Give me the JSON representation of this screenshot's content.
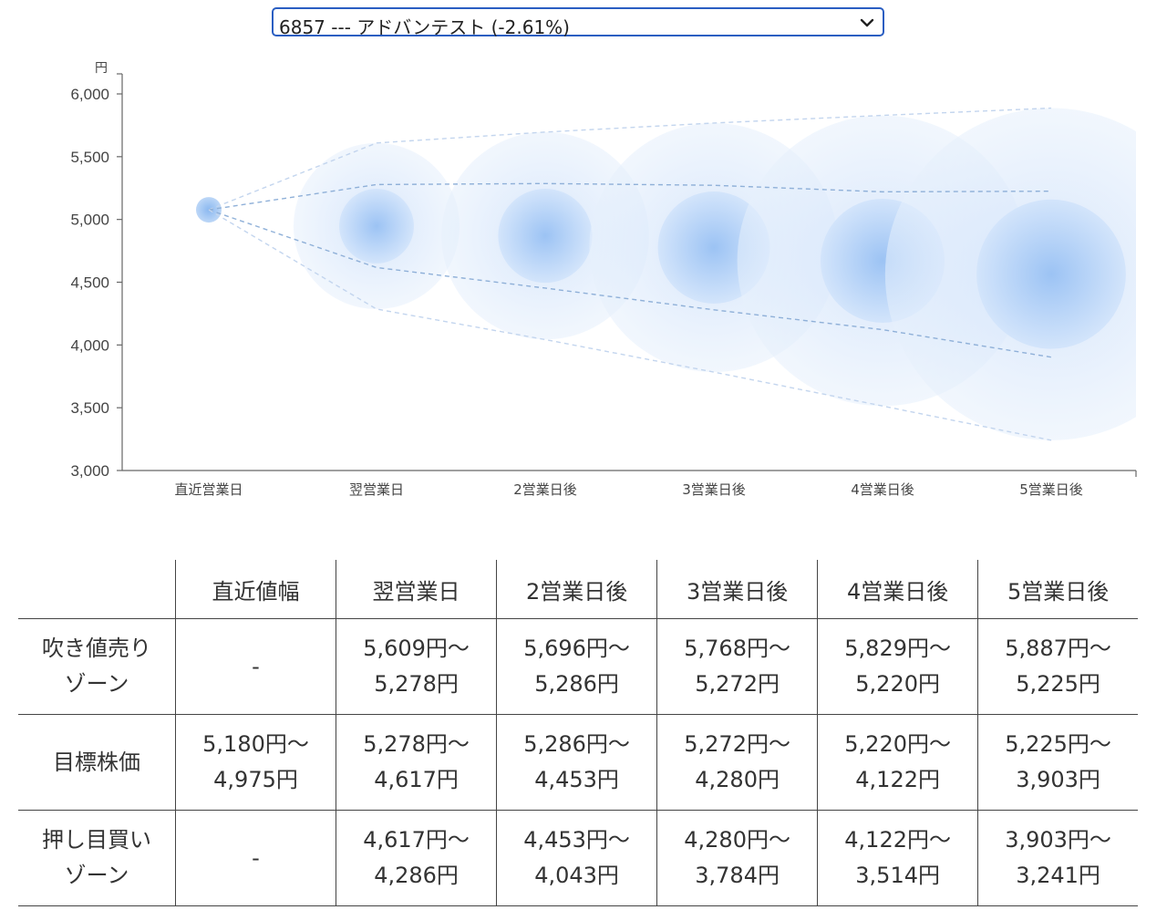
{
  "selector": {
    "value": "6857 --- アドバンテスト (-2.61%)"
  },
  "chart_data": {
    "type": "scatter",
    "unit_label": "円",
    "ylim": [
      3000,
      6000
    ],
    "yticks": [
      6000,
      5500,
      5000,
      4500,
      4000,
      3500,
      3000
    ],
    "ytick_labels": [
      "6,000",
      "5,500",
      "5,000",
      "4,500",
      "4,000",
      "3,500",
      "3,000"
    ],
    "categories": [
      "直近営業日",
      "翌営業日",
      "2営業日後",
      "3営業日後",
      "4営業日後",
      "5営業日後"
    ],
    "points": [
      {
        "category": "直近営業日",
        "center": 5077,
        "outer_high": 5180,
        "outer_low": 4975,
        "inner_high": 5180,
        "inner_low": 4975
      },
      {
        "category": "翌営業日",
        "center": 4947,
        "outer_high": 5609,
        "outer_low": 4286,
        "inner_high": 5278,
        "inner_low": 4617
      },
      {
        "category": "2営業日後",
        "center": 4870,
        "outer_high": 5696,
        "outer_low": 4043,
        "inner_high": 5286,
        "inner_low": 4453
      },
      {
        "category": "3営業日後",
        "center": 4776,
        "outer_high": 5768,
        "outer_low": 3784,
        "inner_high": 5272,
        "inner_low": 4280
      },
      {
        "category": "4営業日後",
        "center": 4671,
        "outer_high": 5829,
        "outer_low": 3514,
        "inner_high": 5220,
        "inner_low": 4122
      },
      {
        "category": "5営業日後",
        "center": 4564,
        "outer_high": 5887,
        "outer_low": 3241,
        "inner_high": 5225,
        "inner_low": 3903
      }
    ],
    "bubble_color": "#5b9ce8",
    "line_color": "#8fb0d8"
  },
  "table": {
    "headers": [
      "",
      "直近値幅",
      "翌営業日",
      "2営業日後",
      "3営業日後",
      "4営業日後",
      "5営業日後"
    ],
    "rows": [
      {
        "label": [
          "吹き値売り",
          "ゾーン"
        ],
        "cells": [
          [
            "-"
          ],
          [
            "5,609円〜",
            "5,278円"
          ],
          [
            "5,696円〜",
            "5,286円"
          ],
          [
            "5,768円〜",
            "5,272円"
          ],
          [
            "5,829円〜",
            "5,220円"
          ],
          [
            "5,887円〜",
            "5,225円"
          ]
        ]
      },
      {
        "label": [
          "目標株価"
        ],
        "cells": [
          [
            "5,180円〜",
            "4,975円"
          ],
          [
            "5,278円〜",
            "4,617円"
          ],
          [
            "5,286円〜",
            "4,453円"
          ],
          [
            "5,272円〜",
            "4,280円"
          ],
          [
            "5,220円〜",
            "4,122円"
          ],
          [
            "5,225円〜",
            "3,903円"
          ]
        ]
      },
      {
        "label": [
          "押し目買い",
          "ゾーン"
        ],
        "cells": [
          [
            "-"
          ],
          [
            "4,617円〜",
            "4,286円"
          ],
          [
            "4,453円〜",
            "4,043円"
          ],
          [
            "4,280円〜",
            "3,784円"
          ],
          [
            "4,122円〜",
            "3,514円"
          ],
          [
            "3,903円〜",
            "3,241円"
          ]
        ]
      }
    ]
  }
}
